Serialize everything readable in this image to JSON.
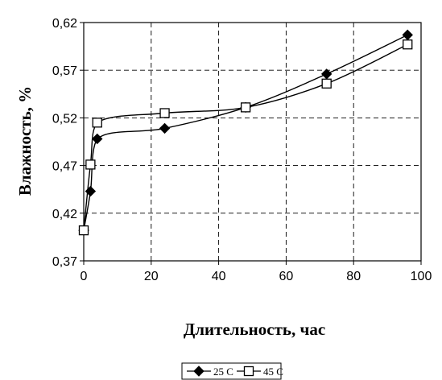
{
  "chart_data": {
    "type": "line",
    "xlabel": "Длительность, час",
    "ylabel": "Влажность, %",
    "xlim": [
      0,
      100
    ],
    "ylim": [
      0.37,
      0.62
    ],
    "x_ticks": [
      0,
      20,
      40,
      60,
      80,
      100
    ],
    "x_tick_labels": [
      "0",
      "20",
      "40",
      "60",
      "80",
      "100"
    ],
    "y_ticks": [
      0.37,
      0.42,
      0.47,
      0.52,
      0.57,
      0.62
    ],
    "y_tick_labels": [
      "0,37",
      "0,42",
      "0,47",
      "0,52",
      "0,57",
      "0,62"
    ],
    "grid": true,
    "legend_position": "bottom-center",
    "series": [
      {
        "name": "25 C",
        "marker": "filled-diamond",
        "color": "#000000",
        "x": [
          0,
          2,
          4,
          24,
          48,
          72,
          96
        ],
        "y": [
          0.402,
          0.443,
          0.498,
          0.509,
          0.531,
          0.566,
          0.607
        ]
      },
      {
        "name": "45 C",
        "marker": "open-square",
        "color": "#000000",
        "x": [
          0,
          2,
          4,
          24,
          48,
          72,
          96
        ],
        "y": [
          0.402,
          0.471,
          0.515,
          0.525,
          0.531,
          0.556,
          0.597
        ]
      }
    ]
  }
}
